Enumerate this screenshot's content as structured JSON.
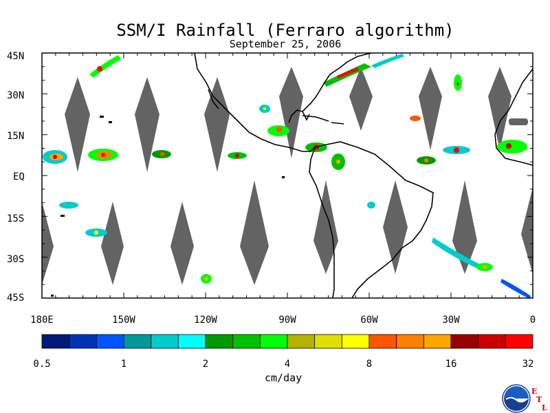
{
  "title": "SSM/I Rainfall (Ferraro algorithm)",
  "subtitle": "September 25, 2006",
  "lat_labels": [
    "45N",
    "30N",
    "15N",
    "EQ",
    "15S",
    "30S",
    "45S"
  ],
  "lon_labels": [
    "180E",
    "150W",
    "120W",
    "90W",
    "60W",
    "30W",
    "0"
  ],
  "colorbar": {
    "colors": [
      "#001a7a",
      "#0033b3",
      "#0055ff",
      "#00999a",
      "#00cccc",
      "#00ffff",
      "#009900",
      "#00c000",
      "#00ff00",
      "#b3b300",
      "#e0e000",
      "#ffff00",
      "#ff5500",
      "#ff8000",
      "#ffa500",
      "#990000",
      "#cc0000",
      "#ff0000"
    ],
    "tick_labels": [
      "0.5",
      "1",
      "2",
      "4",
      "8",
      "16",
      "32"
    ],
    "units": "cm/day"
  },
  "logo": {
    "name": "NOAA",
    "lab": "ETL"
  },
  "colors": {
    "land_outline": "#000000",
    "no_data": "#636363",
    "background": "#ffffff"
  }
}
